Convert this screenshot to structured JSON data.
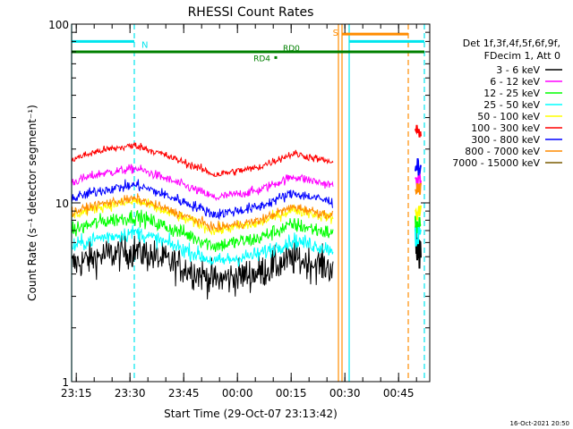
{
  "chart_data": {
    "type": "line",
    "title": "RHESSI Count Rates",
    "ylabel": "Count Rate (s⁻¹ detector segment⁻¹)",
    "xlabel": "Start Time (29-Oct-07 23:13:42)",
    "y_scale": "log",
    "ylim": [
      1,
      100
    ],
    "y_ticks": [
      {
        "value": 1,
        "label": "1"
      },
      {
        "value": 10,
        "label": "10"
      },
      {
        "value": 100,
        "label": "100"
      }
    ],
    "x_unit": "minutes after 2007-10-29 23:13:42",
    "xlim": [
      0,
      100
    ],
    "x_ticks": [
      {
        "value": 1.3,
        "label": "23:15"
      },
      {
        "value": 16.3,
        "label": "23:30"
      },
      {
        "value": 31.3,
        "label": "23:45"
      },
      {
        "value": 46.3,
        "label": "00:00"
      },
      {
        "value": 61.3,
        "label": "00:15"
      },
      {
        "value": 76.3,
        "label": "00:30"
      },
      {
        "value": 91.3,
        "label": "00:45"
      }
    ],
    "legend": {
      "placement": "right",
      "header": [
        "Det 1f,3f,4f,5f,6f,9f,",
        "FDecim 1, Att 0"
      ]
    },
    "series": [
      {
        "name": "3 - 6 keV",
        "color": "#000000",
        "base": 4.5,
        "noise": 0.22,
        "end": 5.5
      },
      {
        "name": "6 - 12 keV",
        "color": "#ff00ff",
        "base": 13.0,
        "noise": 0.06,
        "end": 13.5
      },
      {
        "name": "12 - 25 keV",
        "color": "#00ff00",
        "base": 7.0,
        "noise": 0.1,
        "end": 7.5
      },
      {
        "name": "25 - 50 keV",
        "color": "#00ffff",
        "base": 5.7,
        "noise": 0.1,
        "end": 6.5
      },
      {
        "name": "50 - 100 keV",
        "color": "#ffff00",
        "base": 8.5,
        "noise": 0.07,
        "end": 8.8
      },
      {
        "name": "100 - 300 keV",
        "color": "#ff0000",
        "base": 17.5,
        "noise": 0.05,
        "end": 25
      },
      {
        "name": "300 - 800 keV",
        "color": "#0000ff",
        "base": 10.5,
        "noise": 0.07,
        "end": 16
      },
      {
        "name": "800 - 7000 keV",
        "color": "#ff8c00",
        "base": 8.8,
        "noise": 0.06,
        "end": 12
      },
      {
        "name": "7000 - 15000 keV",
        "color": "#7a5c00",
        "base": null,
        "noise": 0,
        "end": null
      }
    ],
    "segments": [
      [
        0,
        73
      ],
      [
        96,
        97.5
      ]
    ],
    "attenuator_bars": [
      {
        "label": "N",
        "color": "#00e5ee",
        "y": 80,
        "x0": 0,
        "x1": 17.5
      },
      {
        "label": "",
        "color": "#00e5ee",
        "y": 80,
        "x0": 77.5,
        "x1": 98.5
      },
      {
        "label": "S",
        "color": "#ff8c00",
        "y": 88,
        "x0": 75.5,
        "x1": 94
      },
      {
        "label": "",
        "color": "#008000",
        "y": 70,
        "x0": 0,
        "x1": 98.5
      }
    ],
    "markers": [
      {
        "label": "RD0",
        "x": 58,
        "y": 70
      },
      {
        "label": "RD4",
        "x": 57,
        "y": 65
      }
    ],
    "vlines": [
      {
        "x": 0,
        "color": "#00e5ee",
        "style": "solid"
      },
      {
        "x": 17.5,
        "color": "#00e5ee",
        "style": "dashed"
      },
      {
        "x": 74.5,
        "color": "#ff8c00",
        "style": "solid"
      },
      {
        "x": 75.5,
        "color": "#ff8c00",
        "style": "solid"
      },
      {
        "x": 77.5,
        "color": "#00e5ee",
        "style": "solid"
      },
      {
        "x": 94,
        "color": "#ff8c00",
        "style": "dashed"
      },
      {
        "x": 98.5,
        "color": "#00e5ee",
        "style": "dashed"
      }
    ],
    "timestamp": "16-Oct-2021 20:50"
  }
}
